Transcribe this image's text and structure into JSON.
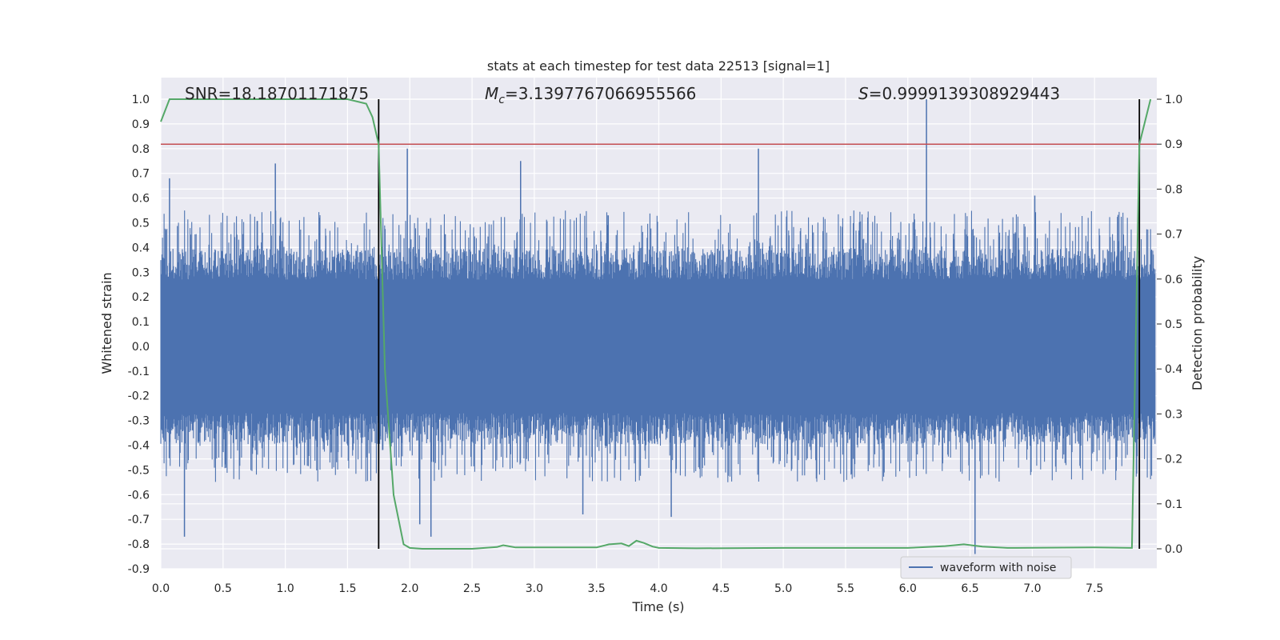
{
  "chart_data": {
    "type": "line",
    "title": "stats at each timestep for test data 22513 [signal=1]",
    "xlabel": "Time (s)",
    "ylabel_left": "Whitened strain",
    "ylabel_right": "Detection probability",
    "xlim": [
      0.0,
      8.0
    ],
    "ylim_left": [
      -0.9,
      1.0
    ],
    "ylim_right": [
      0.0,
      1.0
    ],
    "x_ticks": [
      "0.0",
      "0.5",
      "1.0",
      "1.5",
      "2.0",
      "2.5",
      "3.0",
      "3.5",
      "4.0",
      "4.5",
      "5.0",
      "5.5",
      "6.0",
      "6.5",
      "7.0",
      "7.5"
    ],
    "y_left_ticks": [
      "-0.9",
      "-0.8",
      "-0.7",
      "-0.6",
      "-0.5",
      "-0.4",
      "-0.3",
      "-0.2",
      "-0.1",
      "0.0",
      "0.1",
      "0.2",
      "0.3",
      "0.4",
      "0.5",
      "0.6",
      "0.7",
      "0.8",
      "0.9",
      "1.0"
    ],
    "y_right_ticks": [
      "0.0",
      "0.1",
      "0.2",
      "0.3",
      "0.4",
      "0.5",
      "0.6",
      "0.7",
      "0.8",
      "0.9",
      "1.0"
    ],
    "grid": true,
    "legend": {
      "placement": "lower-right",
      "entries": [
        "waveform with noise"
      ]
    },
    "annotations": {
      "snr": "SNR=18.18701171875",
      "mc_symbol": "M",
      "mc_sub": "c",
      "mc_value": "=3.1397767066955566",
      "s_symbol": "S",
      "s_value": "=0.9999139308929443"
    },
    "threshold": {
      "axis": "right",
      "value": 0.9,
      "color": "#c44e52"
    },
    "vlines": [
      1.75,
      7.86
    ],
    "series": [
      {
        "name": "waveform with noise",
        "axis": "left",
        "color": "#4c72b0",
        "description_free": true,
        "noise_envelope": {
          "core_abs": 0.27,
          "typical_peak_abs": 0.55
        },
        "notable_peaks": [
          {
            "x": 0.07,
            "y": 0.68
          },
          {
            "x": 0.19,
            "y": -0.77
          },
          {
            "x": 0.92,
            "y": 0.74
          },
          {
            "x": 1.98,
            "y": 0.8
          },
          {
            "x": 2.08,
            "y": -0.72
          },
          {
            "x": 2.17,
            "y": -0.77
          },
          {
            "x": 2.89,
            "y": 0.75
          },
          {
            "x": 3.39,
            "y": -0.68
          },
          {
            "x": 4.1,
            "y": -0.69
          },
          {
            "x": 4.8,
            "y": 0.8
          },
          {
            "x": 6.15,
            "y": 1.0
          },
          {
            "x": 6.54,
            "y": -0.84
          },
          {
            "x": 7.02,
            "y": 0.61
          }
        ]
      },
      {
        "name": "detection probability",
        "axis": "right",
        "color": "#55a868",
        "x": [
          0.0,
          0.07,
          0.5,
          1.0,
          1.5,
          1.65,
          1.7,
          1.75,
          1.8,
          1.87,
          1.95,
          2.0,
          2.1,
          2.5,
          2.7,
          2.75,
          2.85,
          3.0,
          3.3,
          3.5,
          3.6,
          3.7,
          3.76,
          3.82,
          3.88,
          3.95,
          4.0,
          4.3,
          5.0,
          5.5,
          6.0,
          6.3,
          6.45,
          6.6,
          6.8,
          7.5,
          7.8,
          7.86,
          7.95
        ],
        "values": [
          0.95,
          1.0,
          1.0,
          1.0,
          1.0,
          0.99,
          0.96,
          0.9,
          0.4,
          0.12,
          0.01,
          0.002,
          0.0,
          0.0,
          0.004,
          0.008,
          0.003,
          0.003,
          0.003,
          0.003,
          0.01,
          0.012,
          0.006,
          0.018,
          0.013,
          0.005,
          0.002,
          0.001,
          0.002,
          0.002,
          0.002,
          0.006,
          0.01,
          0.005,
          0.002,
          0.003,
          0.002,
          0.9,
          1.0
        ]
      }
    ]
  }
}
